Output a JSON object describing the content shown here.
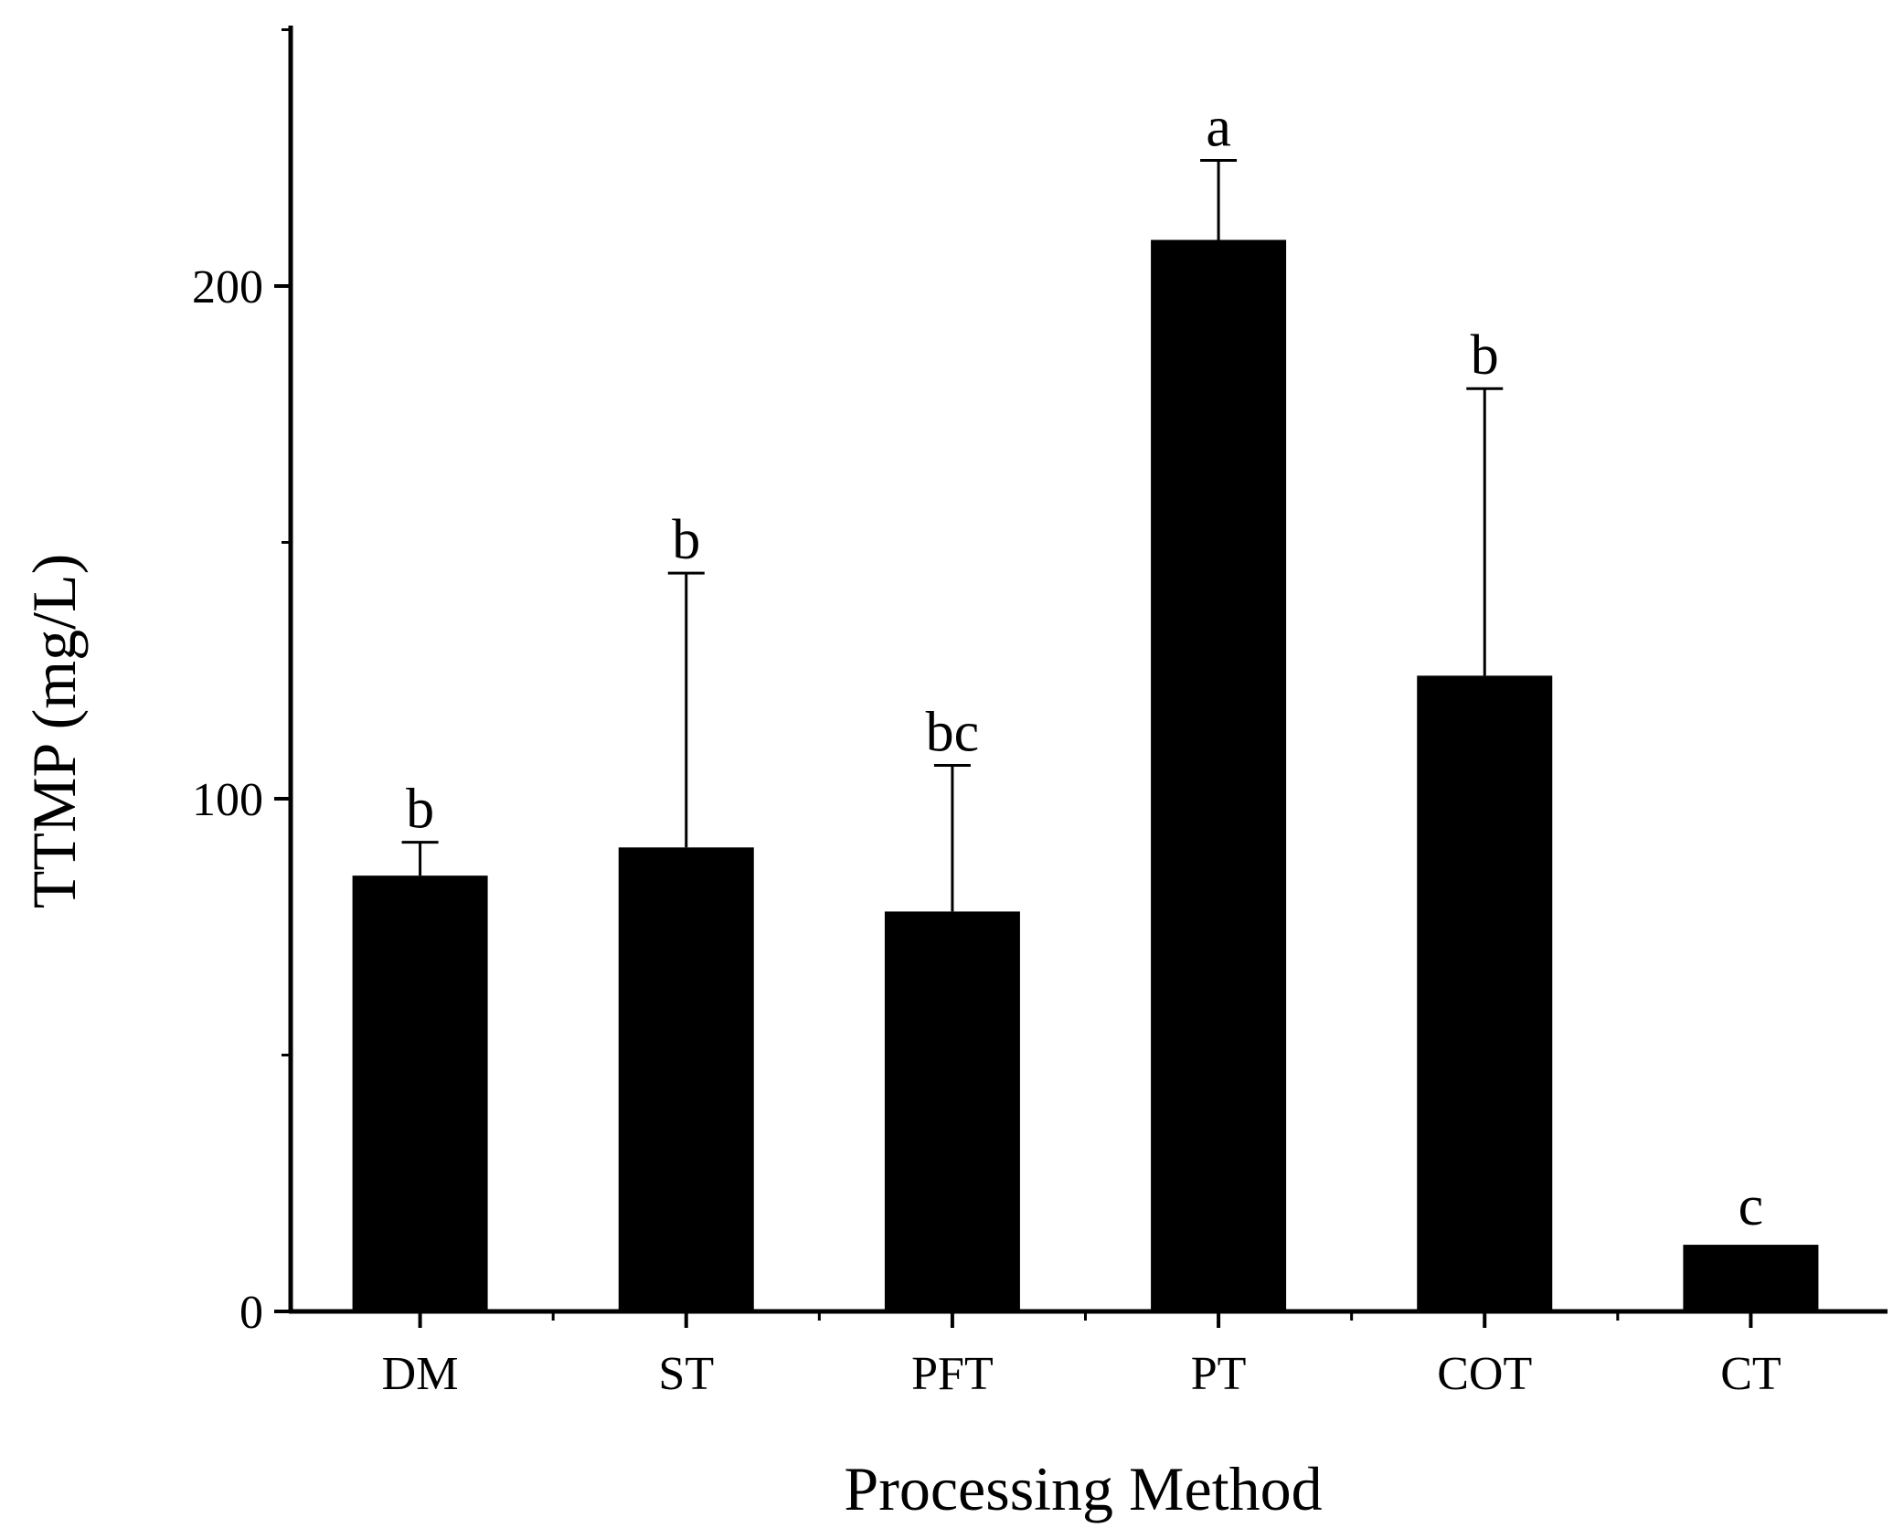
{
  "chart_data": {
    "type": "bar",
    "title": "",
    "xlabel": "Processing Method",
    "ylabel": "TTMP (mg/L)",
    "categories": [
      "DM",
      "ST",
      "PFT",
      "PT",
      "COT",
      "CT"
    ],
    "values": [
      85,
      90.5,
      78,
      209,
      124,
      13
    ],
    "errors": [
      6.5,
      53.5,
      28.5,
      15.5,
      56,
      0
    ],
    "significance": [
      "b",
      "b",
      "bc",
      "a",
      "b",
      "c"
    ],
    "ylim": [
      0,
      250
    ],
    "yticks": [
      0,
      100,
      200
    ],
    "yticks_minor": [
      50,
      150,
      250
    ],
    "grid": false,
    "bar_color": "#000000"
  }
}
